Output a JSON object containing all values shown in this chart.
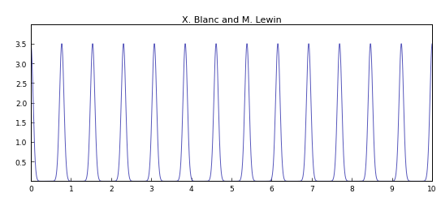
{
  "title": "X. Blanc and M. Lewin",
  "xlim": [
    0,
    10
  ],
  "ylim": [
    0,
    4
  ],
  "xticks": [
    0,
    1,
    2,
    3,
    4,
    5,
    6,
    7,
    8,
    9,
    10
  ],
  "yticks": [
    0.5,
    1,
    1.5,
    2,
    2.5,
    3,
    3.5
  ],
  "line_color": "#5555bb",
  "sigma": 0.055,
  "peak_height_interior": 3.5,
  "peak_height_edge": 3.7,
  "period": 0.769,
  "n_peaks": 14,
  "figsize": [
    5.43,
    2.55
  ],
  "dpi": 100
}
